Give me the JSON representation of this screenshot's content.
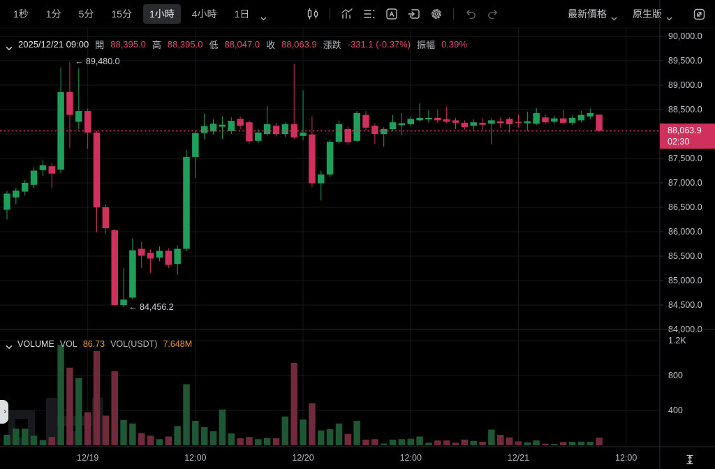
{
  "toolbar": {
    "intervals": [
      "1秒",
      "1分",
      "5分",
      "15分",
      "1小時",
      "4小時",
      "1日"
    ],
    "selected_interval": "1小時",
    "price_mode_label": "最新價格",
    "version_label": "原生版"
  },
  "ohlc_bar": {
    "datetime": "2025/12/21 09:00",
    "open_label": "開",
    "open": "88,395.0",
    "high_label": "高",
    "high": "88,395.0",
    "low_label": "低",
    "low": "88,047.0",
    "close_label": "收",
    "close": "88,063.9",
    "change_label": "漲跌",
    "change": "-331.1 (-0.37%)",
    "amplitude_label": "振幅",
    "amplitude": "0.39%"
  },
  "volume_header": {
    "title": "VOLUME",
    "vol_label": "VOL",
    "vol_value": "86.73",
    "vol_usdt_label": "VOL(USDT)",
    "vol_usdt_value": "7.648M"
  },
  "price_badge": {
    "price": "88,063.9",
    "time": "02:30"
  },
  "colors": {
    "up": "#1fa05a",
    "down": "#d0305c",
    "vol_up": "#1d5733",
    "vol_down": "#702a3c",
    "accent_orange": "#e89a2e",
    "badge": "#d0305c",
    "grid": "#15171a",
    "separator": "#2a2d32"
  },
  "chart_data": {
    "type": "candlestick",
    "interval": "1h",
    "price_axis": {
      "min": 84000,
      "max": 90000,
      "tick_step": 500,
      "labels": [
        "90,000.0",
        "89,500.0",
        "89,000.0",
        "88,500.0",
        "88,000.0",
        "87,500.0",
        "87,000.0",
        "86,500.0",
        "86,000.0",
        "85,500.0",
        "85,000.0",
        "84,500.0",
        "84,000.0"
      ]
    },
    "volume_axis": {
      "ticks": [
        1200,
        800,
        400
      ],
      "labels": [
        "1.2K",
        "800",
        "400"
      ]
    },
    "x_labels": [
      {
        "label": "12/19",
        "candle_index": 9
      },
      {
        "label": "12:00",
        "candle_index": 21
      },
      {
        "label": "12/20",
        "candle_index": 33
      },
      {
        "label": "12:00",
        "candle_index": 45
      },
      {
        "label": "12/21",
        "candle_index": 57
      },
      {
        "label": "12:00",
        "candle_index": 69
      }
    ],
    "last_price": 88063.9,
    "annotations": {
      "high": {
        "text": "← 89,480.0",
        "candle_index": 7,
        "price": 89480.0
      },
      "low": {
        "text": "← 84,456.2",
        "candle_index": 13,
        "price": 84456.2
      }
    },
    "columns": [
      "time",
      "open",
      "high",
      "low",
      "close",
      "volume"
    ],
    "candles": [
      [
        "12/18 15:00",
        86450,
        86830,
        86250,
        86780,
        120
      ],
      [
        "12/18 16:00",
        86700,
        86900,
        86560,
        86840,
        190
      ],
      [
        "12/18 17:00",
        86820,
        87060,
        86740,
        87000,
        190
      ],
      [
        "12/18 18:00",
        86960,
        87320,
        86890,
        87250,
        110
      ],
      [
        "12/18 19:00",
        87260,
        87460,
        87140,
        87360,
        60
      ],
      [
        "12/18 20:00",
        87340,
        87400,
        86890,
        87190,
        95
      ],
      [
        "12/18 21:00",
        87270,
        89360,
        87200,
        88860,
        1150
      ],
      [
        "12/18 22:00",
        88860,
        89480,
        87710,
        88390,
        890
      ],
      [
        "12/18 23:00",
        88250,
        89340,
        88100,
        88470,
        770
      ],
      [
        "12/19 00:00",
        88470,
        88520,
        87700,
        88030,
        380
      ],
      [
        "12/19 01:00",
        88030,
        88060,
        85990,
        86500,
        1080
      ],
      [
        "12/19 02:00",
        86500,
        86560,
        85950,
        86070,
        340
      ],
      [
        "12/19 03:00",
        86030,
        86050,
        84470,
        84500,
        850
      ],
      [
        "12/19 04:00",
        84500,
        85260,
        84456.2,
        84610,
        290
      ],
      [
        "12/19 05:00",
        84650,
        85860,
        84610,
        85620,
        250
      ],
      [
        "12/19 06:00",
        85650,
        85790,
        85260,
        85510,
        140
      ],
      [
        "12/19 07:00",
        85570,
        85640,
        85150,
        85450,
        110
      ],
      [
        "12/19 08:00",
        85470,
        85700,
        85400,
        85610,
        70
      ],
      [
        "12/19 09:00",
        85610,
        85660,
        85260,
        85320,
        100
      ],
      [
        "12/19 10:00",
        85340,
        85720,
        85120,
        85650,
        220
      ],
      [
        "12/19 11:00",
        85650,
        87670,
        85600,
        87530,
        700
      ],
      [
        "12/19 12:00",
        87530,
        88080,
        87100,
        88020,
        280
      ],
      [
        "12/19 13:00",
        88020,
        88420,
        87890,
        88160,
        210
      ],
      [
        "12/19 14:00",
        88050,
        88300,
        87990,
        88210,
        160
      ],
      [
        "12/19 15:00",
        88150,
        88360,
        87900,
        88190,
        410
      ],
      [
        "12/19 16:00",
        88060,
        88340,
        88000,
        88270,
        135
      ],
      [
        "12/19 17:00",
        88310,
        88360,
        88100,
        88170,
        80
      ],
      [
        "12/19 18:00",
        88240,
        88280,
        87800,
        87850,
        95
      ],
      [
        "12/19 19:00",
        87860,
        88100,
        87810,
        88030,
        70
      ],
      [
        "12/19 20:00",
        88000,
        88570,
        87960,
        88200,
        85
      ],
      [
        "12/19 21:00",
        88170,
        88230,
        87950,
        88000,
        80
      ],
      [
        "12/19 22:00",
        88000,
        88240,
        87940,
        88200,
        330
      ],
      [
        "12/19 23:00",
        88200,
        89430,
        87900,
        87930,
        945
      ],
      [
        "12/20 00:00",
        87960,
        88890,
        87870,
        88030,
        295
      ],
      [
        "12/20 01:00",
        87990,
        88360,
        86910,
        86990,
        480
      ],
      [
        "12/20 02:00",
        86990,
        87250,
        86640,
        87170,
        170
      ],
      [
        "12/20 03:00",
        87170,
        87890,
        87120,
        87840,
        185
      ],
      [
        "12/20 04:00",
        87840,
        88280,
        87800,
        88200,
        250
      ],
      [
        "12/20 05:00",
        88100,
        88150,
        87780,
        87830,
        130
      ],
      [
        "12/20 06:00",
        87860,
        88470,
        87830,
        88430,
        280
      ],
      [
        "12/20 07:00",
        88390,
        88470,
        88080,
        88130,
        65
      ],
      [
        "12/20 08:00",
        88170,
        88210,
        87790,
        88000,
        70
      ],
      [
        "12/20 09:00",
        88000,
        88140,
        87740,
        88100,
        20
      ],
      [
        "12/20 10:00",
        88100,
        88390,
        88060,
        88240,
        65
      ],
      [
        "12/20 11:00",
        88180,
        88430,
        87980,
        88220,
        70
      ],
      [
        "12/20 12:00",
        88200,
        88360,
        88160,
        88310,
        75
      ],
      [
        "12/20 13:00",
        88280,
        88630,
        88250,
        88330,
        100
      ],
      [
        "12/20 14:00",
        88300,
        88490,
        88230,
        88330,
        30
      ],
      [
        "12/20 15:00",
        88330,
        88500,
        88230,
        88280,
        55
      ],
      [
        "12/20 16:00",
        88300,
        88560,
        88220,
        88250,
        55
      ],
      [
        "12/20 17:00",
        88280,
        88330,
        88100,
        88230,
        30
      ],
      [
        "12/20 18:00",
        88230,
        88280,
        88090,
        88140,
        65
      ],
      [
        "12/20 19:00",
        88170,
        88300,
        88080,
        88240,
        50
      ],
      [
        "12/20 20:00",
        88230,
        88320,
        88080,
        88190,
        40
      ],
      [
        "12/20 21:00",
        88210,
        88320,
        87790,
        88280,
        180
      ],
      [
        "12/20 22:00",
        88260,
        88340,
        88120,
        88220,
        120
      ],
      [
        "12/20 23:00",
        88310,
        88340,
        88030,
        88200,
        90
      ],
      [
        "12/21 00:00",
        88250,
        88400,
        88130,
        88230,
        45
      ],
      [
        "12/21 01:00",
        88220,
        88460,
        88060,
        88260,
        35
      ],
      [
        "12/21 02:00",
        88210,
        88530,
        88180,
        88430,
        55
      ],
      [
        "12/21 03:00",
        88340,
        88400,
        88200,
        88240,
        18
      ],
      [
        "12/21 04:00",
        88250,
        88370,
        88210,
        88320,
        15
      ],
      [
        "12/21 05:00",
        88320,
        88490,
        88190,
        88230,
        38
      ],
      [
        "12/21 06:00",
        88230,
        88380,
        88180,
        88330,
        40
      ],
      [
        "12/21 07:00",
        88280,
        88470,
        88240,
        88390,
        42
      ],
      [
        "12/21 08:00",
        88360,
        88520,
        88300,
        88430,
        40
      ],
      [
        "12/21 09:00",
        88395,
        88395,
        88047,
        88063.9,
        86.73
      ]
    ]
  }
}
